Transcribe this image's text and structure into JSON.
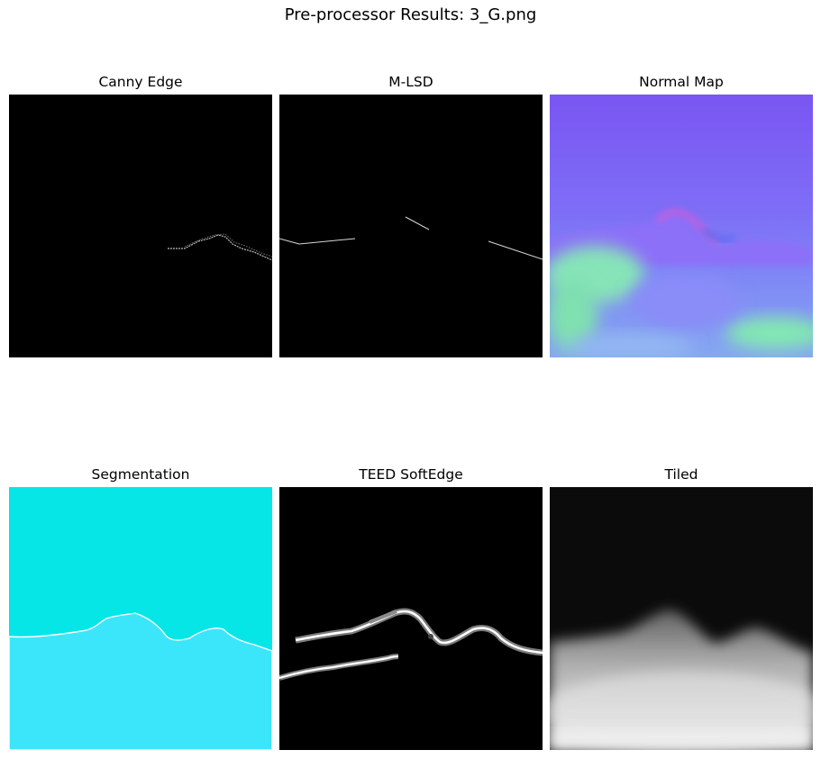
{
  "figure": {
    "title": "Pre-processor Results: 3_G.png"
  },
  "panels": [
    {
      "title": "Canny Edge"
    },
    {
      "title": "M-LSD"
    },
    {
      "title": "Normal Map"
    },
    {
      "title": "Segmentation"
    },
    {
      "title": "TEED SoftEdge"
    },
    {
      "title": "Tiled"
    }
  ],
  "colors": {
    "background": "#ffffff",
    "edge_bg": "#000000",
    "segmentation_sky": "#06e6e6",
    "segmentation_ground": "#3ce6fa",
    "normal_base": "#7d67f5",
    "normal_green": "#80e8b4",
    "tiled_top": "#0b0b0b",
    "tiled_bottom": "#f0f0f0"
  }
}
